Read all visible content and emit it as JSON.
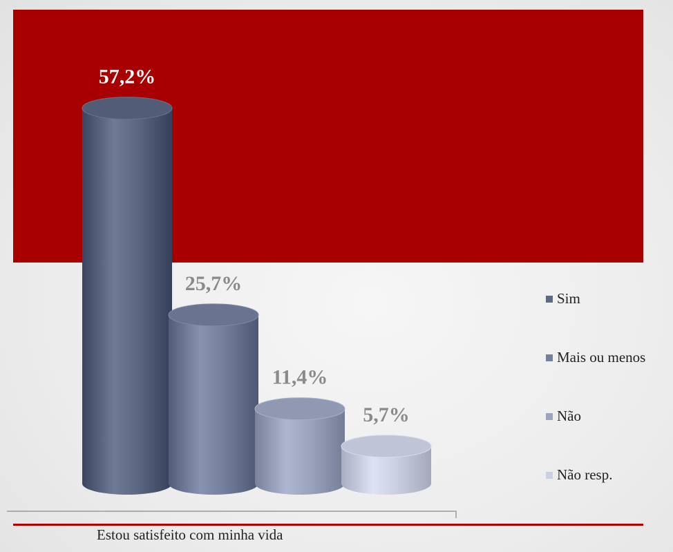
{
  "chart_data": {
    "type": "bar",
    "style": "3d-cylinder",
    "categories": [
      "Estou satisfeito com minha vida"
    ],
    "series": [
      {
        "name": "Sim",
        "value": 57.2,
        "label": "57,2%",
        "color": "#5d6882"
      },
      {
        "name": "Mais ou menos",
        "value": 25.7,
        "label": "25,7%",
        "color": "#74809c"
      },
      {
        "name": "Não",
        "value": 11.4,
        "label": "11,4%",
        "color": "#9ca4be"
      },
      {
        "name": "Não resp.",
        "value": 5.7,
        "label": "5,7%",
        "color": "#cbd0e2"
      }
    ],
    "ylim": [
      0,
      60
    ],
    "legend_position": "right",
    "grid": false,
    "title": "",
    "xlabel": "",
    "ylabel": ""
  },
  "colors": {
    "banner": "#a80000",
    "rule": "#b40000",
    "first_label": "#ffffff",
    "other_labels": "#8a8a8a"
  }
}
